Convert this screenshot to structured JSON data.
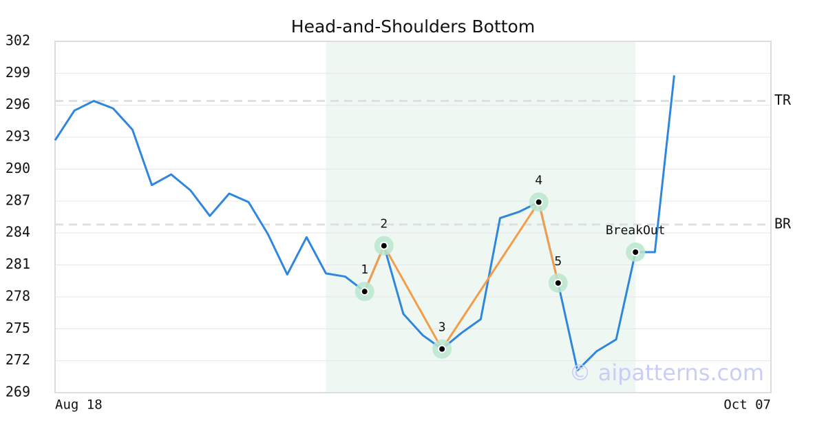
{
  "chart_data": {
    "type": "line",
    "title": "Head-and-Shoulders Bottom",
    "categories": [
      "Aug 18",
      null,
      null,
      null,
      null,
      null,
      null,
      null,
      null,
      null,
      null,
      null,
      null,
      null,
      null,
      null,
      null,
      null,
      null,
      null,
      null,
      null,
      null,
      null,
      null,
      null,
      null,
      null,
      null,
      null,
      null,
      null,
      null,
      null,
      null,
      null,
      null,
      "Oct 07"
    ],
    "values": [
      292.7,
      295.5,
      296.4,
      295.7,
      293.7,
      288.5,
      289.5,
      288.0,
      285.6,
      287.7,
      286.9,
      283.9,
      280.1,
      283.6,
      280.2,
      279.9,
      278.5,
      282.8,
      276.4,
      274.4,
      273.1,
      274.6,
      275.9,
      285.4,
      286.0,
      286.9,
      279.3,
      271.1,
      272.9,
      274.0,
      282.2,
      282.2,
      298.8,
      null,
      null,
      null,
      null,
      null
    ],
    "color": "#2e86de",
    "pattern": {
      "color": "#f39c4a",
      "values": [
        null,
        null,
        null,
        null,
        null,
        null,
        null,
        null,
        null,
        null,
        null,
        null,
        null,
        null,
        null,
        null,
        278.5,
        282.8,
        null,
        null,
        273.1,
        null,
        null,
        null,
        null,
        286.9,
        279.3,
        null,
        null,
        null,
        null,
        null,
        null,
        null,
        null,
        null,
        null,
        null
      ],
      "labels": [
        null,
        null,
        null,
        null,
        null,
        null,
        null,
        null,
        null,
        null,
        null,
        null,
        null,
        null,
        null,
        null,
        "1",
        "2",
        null,
        null,
        "3",
        null,
        null,
        null,
        null,
        "4",
        "5",
        null,
        null,
        null,
        null,
        null,
        null,
        null,
        null,
        null,
        null,
        null
      ],
      "breakout": {
        "index": 30,
        "value": 282.2,
        "label": "BreakOut"
      }
    },
    "highlight": {
      "from": 14,
      "to": 30,
      "color": "#eef7f2"
    },
    "levels": [
      {
        "label": "TR",
        "value": 296.4
      },
      {
        "label": "BR",
        "value": 284.8
      }
    ],
    "ylim": [
      269,
      302
    ],
    "yticks": [
      269,
      272,
      275,
      278,
      281,
      284,
      287,
      290,
      293,
      296,
      299,
      302
    ],
    "grid": true,
    "watermark": "© aipatterns.com"
  }
}
